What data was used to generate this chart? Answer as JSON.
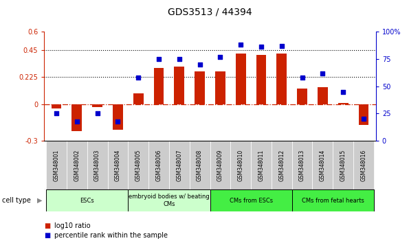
{
  "title": "GDS3513 / 44394",
  "samples": [
    "GSM348001",
    "GSM348002",
    "GSM348003",
    "GSM348004",
    "GSM348005",
    "GSM348006",
    "GSM348007",
    "GSM348008",
    "GSM348009",
    "GSM348010",
    "GSM348011",
    "GSM348012",
    "GSM348013",
    "GSM348014",
    "GSM348015",
    "GSM348016"
  ],
  "log10_ratio": [
    -0.03,
    -0.22,
    -0.02,
    -0.21,
    0.09,
    0.3,
    0.31,
    0.27,
    0.27,
    0.42,
    0.41,
    0.42,
    0.13,
    0.14,
    0.01,
    -0.17
  ],
  "percentile_rank": [
    25,
    18,
    25,
    18,
    58,
    75,
    75,
    70,
    77,
    88,
    86,
    87,
    58,
    62,
    45,
    20
  ],
  "ylim_left": [
    -0.3,
    0.6
  ],
  "ylim_right": [
    0,
    100
  ],
  "yticks_left": [
    -0.3,
    0.0,
    0.225,
    0.45,
    0.6
  ],
  "ytick_labels_left": [
    "-0.3",
    "0",
    "0.225",
    "0.45",
    "0.6"
  ],
  "yticks_right": [
    0,
    25,
    50,
    75,
    100
  ],
  "ytick_labels_right": [
    "0",
    "25",
    "50",
    "75",
    "100%"
  ],
  "hlines": [
    0.225,
    0.45
  ],
  "cell_types": [
    {
      "label": "ESCs",
      "start": 0,
      "end": 3,
      "color": "#ccffcc"
    },
    {
      "label": "embryoid bodies w/ beating\nCMs",
      "start": 4,
      "end": 7,
      "color": "#ccffcc"
    },
    {
      "label": "CMs from ESCs",
      "start": 8,
      "end": 11,
      "color": "#44ee44"
    },
    {
      "label": "CMs from fetal hearts",
      "start": 12,
      "end": 15,
      "color": "#44ee44"
    }
  ],
  "bar_color": "#cc2200",
  "scatter_color": "#0000cc",
  "zero_line_color": "#cc2200",
  "background_color": "#ffffff",
  "plot_bg_color": "#ffffff",
  "tick_bg_color": "#cccccc",
  "legend_items": [
    {
      "label": "log10 ratio",
      "color": "#cc2200"
    },
    {
      "label": "percentile rank within the sample",
      "color": "#0000cc"
    }
  ]
}
